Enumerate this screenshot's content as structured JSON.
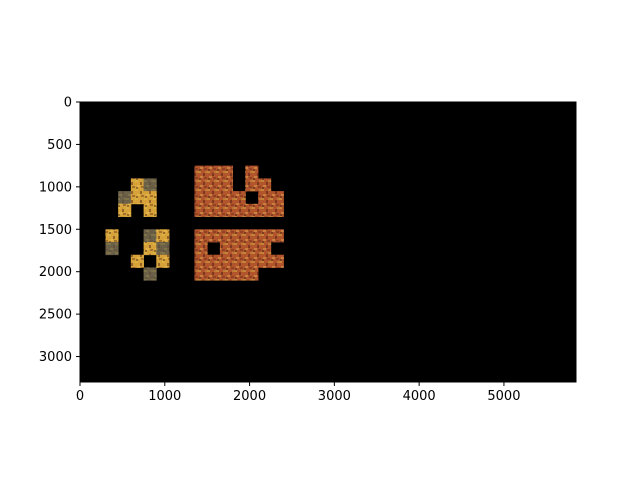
{
  "chart_data": {
    "type": "heatmap",
    "title": "",
    "xlabel": "",
    "ylabel": "",
    "xlim": [
      0,
      5850
    ],
    "ylim": [
      3300,
      0
    ],
    "y_inverted": true,
    "x_ticks": [
      0,
      1000,
      2000,
      3000,
      4000,
      5000
    ],
    "y_ticks": [
      0,
      500,
      1000,
      1500,
      2000,
      2500,
      3000
    ],
    "x_tick_labels": [
      "0",
      "1000",
      "2000",
      "3000",
      "4000",
      "5000"
    ],
    "y_tick_labels": [
      "0",
      "500",
      "1000",
      "1500",
      "2000",
      "2500",
      "3000"
    ],
    "grid": false,
    "background_color": "#000000",
    "tile_colors": {
      "dull": "#6b6148",
      "warm": "#b2542c",
      "bright": "#d8a23a"
    },
    "tile_size": 150,
    "tiles": [
      {
        "x": 1350,
        "y": 750,
        "style": "warm"
      },
      {
        "x": 1500,
        "y": 750,
        "style": "warm"
      },
      {
        "x": 1650,
        "y": 750,
        "style": "warm"
      },
      {
        "x": 1950,
        "y": 750,
        "style": "warm"
      },
      {
        "x": 1350,
        "y": 900,
        "style": "warm"
      },
      {
        "x": 1500,
        "y": 900,
        "style": "warm"
      },
      {
        "x": 1650,
        "y": 900,
        "style": "warm"
      },
      {
        "x": 1950,
        "y": 900,
        "style": "warm"
      },
      {
        "x": 2100,
        "y": 900,
        "style": "warm"
      },
      {
        "x": 1350,
        "y": 1050,
        "style": "warm"
      },
      {
        "x": 1500,
        "y": 1050,
        "style": "warm"
      },
      {
        "x": 1650,
        "y": 1050,
        "style": "warm"
      },
      {
        "x": 1800,
        "y": 1050,
        "style": "warm"
      },
      {
        "x": 2100,
        "y": 1050,
        "style": "warm"
      },
      {
        "x": 2250,
        "y": 1050,
        "style": "warm"
      },
      {
        "x": 1350,
        "y": 1200,
        "style": "warm"
      },
      {
        "x": 1500,
        "y": 1200,
        "style": "warm"
      },
      {
        "x": 1650,
        "y": 1200,
        "style": "warm"
      },
      {
        "x": 1800,
        "y": 1200,
        "style": "warm"
      },
      {
        "x": 1950,
        "y": 1200,
        "style": "warm"
      },
      {
        "x": 2100,
        "y": 1200,
        "style": "warm"
      },
      {
        "x": 2250,
        "y": 1200,
        "style": "warm"
      },
      {
        "x": 1350,
        "y": 1500,
        "style": "warm"
      },
      {
        "x": 1500,
        "y": 1500,
        "style": "warm"
      },
      {
        "x": 1650,
        "y": 1500,
        "style": "warm"
      },
      {
        "x": 1800,
        "y": 1500,
        "style": "warm"
      },
      {
        "x": 1950,
        "y": 1500,
        "style": "warm"
      },
      {
        "x": 2100,
        "y": 1500,
        "style": "warm"
      },
      {
        "x": 2250,
        "y": 1500,
        "style": "warm"
      },
      {
        "x": 1350,
        "y": 1650,
        "style": "warm"
      },
      {
        "x": 1650,
        "y": 1650,
        "style": "warm"
      },
      {
        "x": 1800,
        "y": 1650,
        "style": "warm"
      },
      {
        "x": 1950,
        "y": 1650,
        "style": "warm"
      },
      {
        "x": 2100,
        "y": 1650,
        "style": "warm"
      },
      {
        "x": 1350,
        "y": 1800,
        "style": "warm"
      },
      {
        "x": 1500,
        "y": 1800,
        "style": "warm"
      },
      {
        "x": 1650,
        "y": 1800,
        "style": "warm"
      },
      {
        "x": 1800,
        "y": 1800,
        "style": "warm"
      },
      {
        "x": 1950,
        "y": 1800,
        "style": "warm"
      },
      {
        "x": 2100,
        "y": 1800,
        "style": "warm"
      },
      {
        "x": 2250,
        "y": 1800,
        "style": "warm"
      },
      {
        "x": 1350,
        "y": 1950,
        "style": "warm"
      },
      {
        "x": 1500,
        "y": 1950,
        "style": "warm"
      },
      {
        "x": 1650,
        "y": 1950,
        "style": "warm"
      },
      {
        "x": 1800,
        "y": 1950,
        "style": "warm"
      },
      {
        "x": 1950,
        "y": 1950,
        "style": "warm"
      },
      {
        "x": 600,
        "y": 900,
        "style": "bright"
      },
      {
        "x": 750,
        "y": 900,
        "style": "dull"
      },
      {
        "x": 450,
        "y": 1050,
        "style": "dull"
      },
      {
        "x": 600,
        "y": 1050,
        "style": "bright"
      },
      {
        "x": 750,
        "y": 1050,
        "style": "bright"
      },
      {
        "x": 450,
        "y": 1200,
        "style": "bright"
      },
      {
        "x": 750,
        "y": 1200,
        "style": "bright"
      },
      {
        "x": 300,
        "y": 1500,
        "style": "bright"
      },
      {
        "x": 750,
        "y": 1500,
        "style": "dull"
      },
      {
        "x": 900,
        "y": 1500,
        "style": "bright"
      },
      {
        "x": 300,
        "y": 1650,
        "style": "dull"
      },
      {
        "x": 750,
        "y": 1650,
        "style": "bright"
      },
      {
        "x": 900,
        "y": 1650,
        "style": "dull"
      },
      {
        "x": 600,
        "y": 1800,
        "style": "bright"
      },
      {
        "x": 900,
        "y": 1800,
        "style": "bright"
      },
      {
        "x": 750,
        "y": 1950,
        "style": "dull"
      }
    ]
  }
}
